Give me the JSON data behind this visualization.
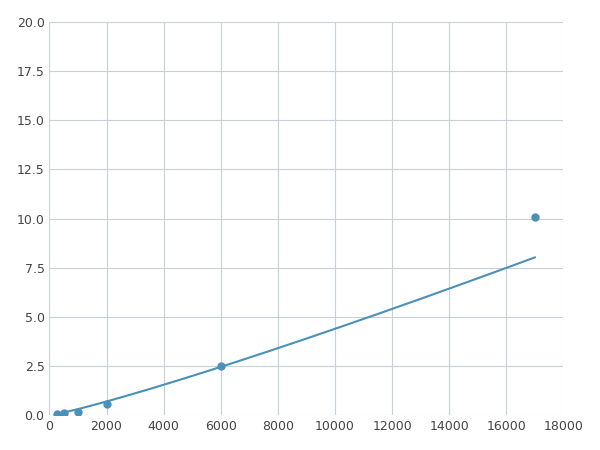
{
  "x": [
    250,
    500,
    1000,
    2000,
    6000,
    17000
  ],
  "y": [
    0.1,
    0.15,
    0.2,
    0.6,
    2.5,
    10.1
  ],
  "line_color": "#4a90b8",
  "marker_color": "#4a90b8",
  "marker_size": 5,
  "xlim": [
    0,
    18000
  ],
  "ylim": [
    0,
    20
  ],
  "xticks": [
    0,
    2000,
    4000,
    6000,
    8000,
    10000,
    12000,
    14000,
    16000,
    18000
  ],
  "yticks": [
    0.0,
    2.5,
    5.0,
    7.5,
    10.0,
    12.5,
    15.0,
    17.5,
    20.0
  ],
  "grid_color": "#c8d0d8",
  "background_color": "#ffffff",
  "fig_bg_color": "#ffffff"
}
